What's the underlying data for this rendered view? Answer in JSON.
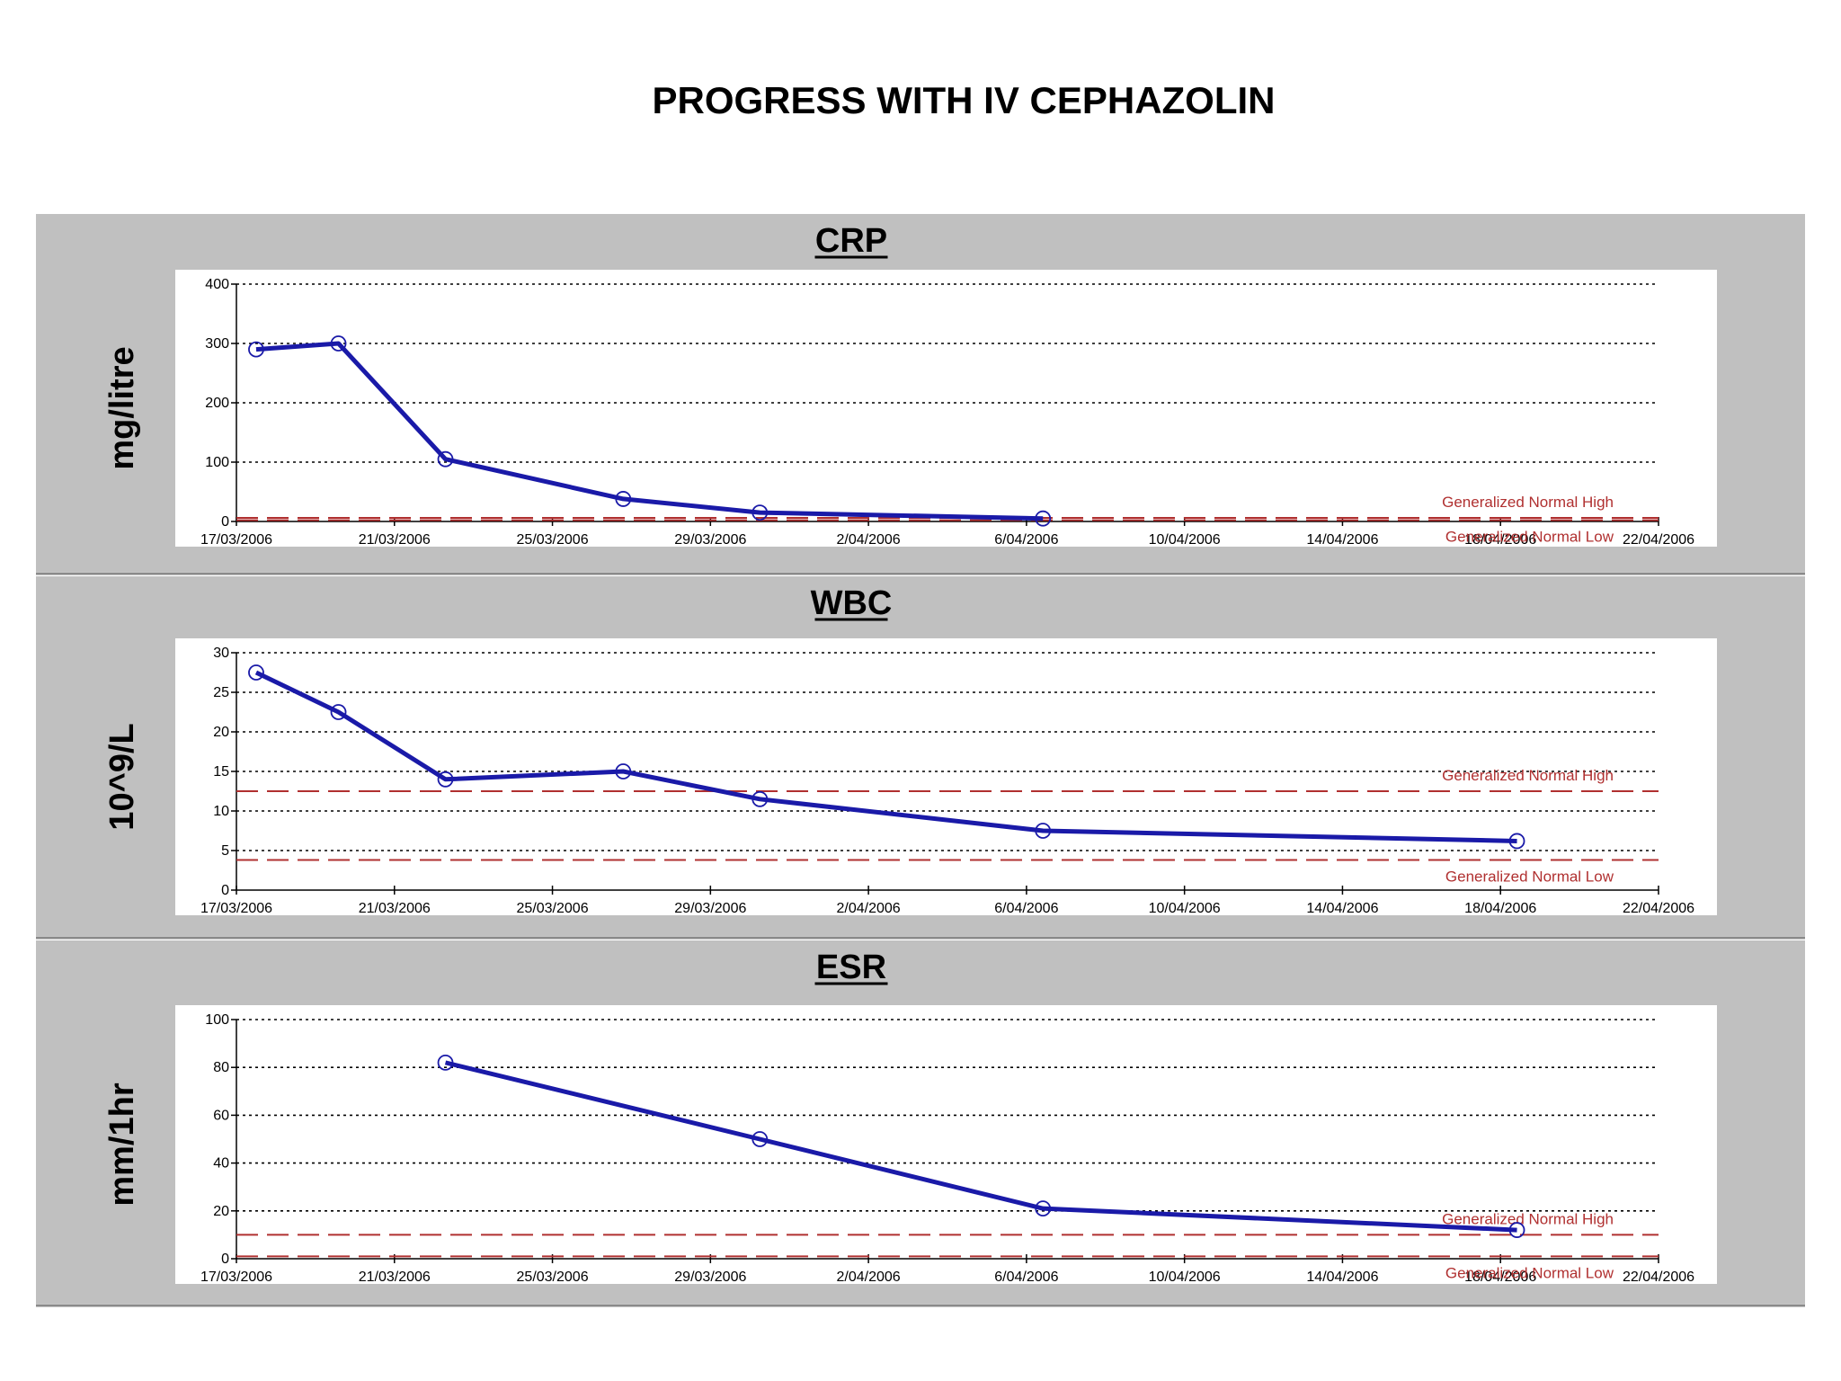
{
  "page": {
    "title": "PROGRESS WITH IV CEPHAZOLIN"
  },
  "colors": {
    "line": "#1a1aa8",
    "reference": "#b03030",
    "panel_bg": "#c0c0c0",
    "plot_bg": "#ffffff",
    "grid": "#000000"
  },
  "date_ticks": [
    "17/03/2006",
    "21/03/2006",
    "25/03/2006",
    "29/03/2006",
    "2/04/2006",
    "6/04/2006",
    "10/04/2006",
    "14/04/2006",
    "18/04/2006",
    "22/04/2006"
  ],
  "chart_data": [
    {
      "type": "line",
      "title": "CRP",
      "ylabel": "mg/litre",
      "xlim": [
        "2006-03-17",
        "2006-04-22"
      ],
      "ylim": [
        0,
        400
      ],
      "yticks": [
        0,
        100,
        200,
        300,
        400
      ],
      "grid": true,
      "series": [
        {
          "x": [
            "2006-03-17T12:00",
            "2006-03-19T14:00",
            "2006-03-22T07:00",
            "2006-03-26T19:00",
            "2006-03-30T06:00",
            "2006-04-06T10:00"
          ],
          "values": [
            290,
            300,
            105,
            38,
            15,
            5
          ]
        }
      ],
      "reference_lines": [
        {
          "label": "Generalized Normal High",
          "value": 6
        },
        {
          "label": "Generalized Normal Low",
          "value": 2
        }
      ]
    },
    {
      "type": "line",
      "title": "WBC",
      "ylabel": "10^9/L",
      "xlim": [
        "2006-03-17",
        "2006-04-22"
      ],
      "ylim": [
        0,
        30
      ],
      "yticks": [
        0,
        5,
        10,
        15,
        20,
        25,
        30
      ],
      "grid": true,
      "series": [
        {
          "x": [
            "2006-03-17T12:00",
            "2006-03-19T14:00",
            "2006-03-22T07:00",
            "2006-03-26T19:00",
            "2006-03-30T06:00",
            "2006-04-06T10:00",
            "2006-04-18T10:00"
          ],
          "values": [
            27.5,
            22.5,
            14,
            15,
            11.5,
            7.5,
            6.2
          ]
        }
      ],
      "reference_lines": [
        {
          "label": "Generalized Normal High",
          "value": 12.5
        },
        {
          "label": "Generalized Normal Low",
          "value": 3.8
        }
      ]
    },
    {
      "type": "line",
      "title": "ESR",
      "ylabel": "mm/1hr",
      "xlim": [
        "2006-03-17",
        "2006-04-22"
      ],
      "ylim": [
        0,
        100
      ],
      "yticks": [
        0,
        20,
        40,
        60,
        80,
        100
      ],
      "grid": true,
      "series": [
        {
          "x": [
            "2006-03-22T07:00",
            "2006-03-30T06:00",
            "2006-04-06T10:00",
            "2006-04-18T10:00"
          ],
          "values": [
            82,
            50,
            21,
            12
          ]
        }
      ],
      "reference_lines": [
        {
          "label": "Generalized Normal High",
          "value": 10
        },
        {
          "label": "Generalized Normal Low",
          "value": 1
        }
      ]
    }
  ]
}
